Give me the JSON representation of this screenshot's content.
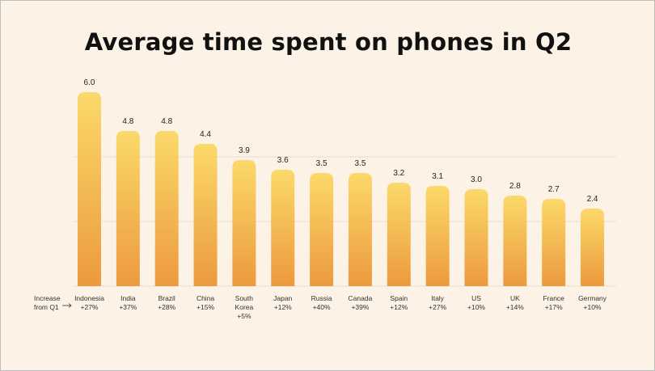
{
  "chart_data": {
    "type": "bar",
    "title": "Average time spent on phones in Q2",
    "row_label_line1": "Increase",
    "row_label_line2": "from Q1",
    "categories": [
      "Indonesia",
      "India",
      "Brazil",
      "China",
      "South Korea",
      "Japan",
      "Russia",
      "Canada",
      "Spain",
      "Italy",
      "US",
      "UK",
      "France",
      "Germany"
    ],
    "category_lines": [
      [
        "Indonesia"
      ],
      [
        "India"
      ],
      [
        "Brazil"
      ],
      [
        "China"
      ],
      [
        "South",
        "Korea"
      ],
      [
        "Japan"
      ],
      [
        "Russia"
      ],
      [
        "Canada"
      ],
      [
        "Spain"
      ],
      [
        "Italy"
      ],
      [
        "US"
      ],
      [
        "UK"
      ],
      [
        "France"
      ],
      [
        "Germany"
      ]
    ],
    "increase_from_q1": [
      "+27%",
      "+37%",
      "+28%",
      "+15%",
      "+5%",
      "+12%",
      "+40%",
      "+39%",
      "+12%",
      "+27%",
      "+10%",
      "+14%",
      "+17%",
      "+10%"
    ],
    "values": [
      6.0,
      4.8,
      4.8,
      4.4,
      3.9,
      3.6,
      3.5,
      3.5,
      3.2,
      3.1,
      3.0,
      2.8,
      2.7,
      2.4
    ],
    "value_labels": [
      "6.0",
      "4.8",
      "4.8",
      "4.4",
      "3.9",
      "3.6",
      "3.5",
      "3.5",
      "3.2",
      "3.1",
      "3.0",
      "2.8",
      "2.7",
      "2.4"
    ],
    "ylim": [
      0,
      6
    ],
    "grid": true,
    "colors": {
      "background": "#fdf2e6",
      "bar_top": "#fbd96a",
      "bar_bottom": "#ec9a3e",
      "grid": "#e7ddd2"
    }
  }
}
